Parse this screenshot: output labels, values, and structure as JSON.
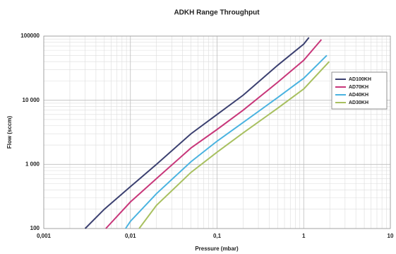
{
  "chart_data": {
    "type": "line",
    "title": "ADKH Range Throughput",
    "x_label": "Pressure (mbar)",
    "y_label": "Flow (sccm)",
    "x_scale": "log",
    "y_scale": "log",
    "grid": true,
    "minor_grid": true,
    "legend": "right",
    "xlim": [
      0.001,
      10
    ],
    "ylim": [
      100,
      100000
    ],
    "xticks": [
      {
        "value": 0.001,
        "label": "0,001"
      },
      {
        "value": 0.01,
        "label": "0,01"
      },
      {
        "value": 0.1,
        "label": "0,1"
      },
      1,
      10
    ],
    "yticks": [
      100,
      {
        "value": 1000,
        "label": "1 000"
      },
      {
        "value": 10000,
        "label": "10 000"
      },
      100000
    ],
    "series": [
      {
        "name": "AD100KH",
        "color": "#3b4070",
        "x": [
          0.003,
          0.005,
          0.01,
          0.02,
          0.05,
          0.1,
          0.2,
          0.5,
          1,
          1.15
        ],
        "values": [
          100,
          200,
          450,
          1000,
          3000,
          6000,
          12000,
          35000,
          75000,
          95000
        ]
      },
      {
        "name": "AD70KH",
        "color": "#c8377a",
        "x": [
          0.0052,
          0.01,
          0.02,
          0.05,
          0.1,
          0.2,
          0.5,
          1,
          1.6
        ],
        "values": [
          100,
          260,
          600,
          1800,
          3500,
          7000,
          19000,
          42000,
          88000
        ]
      },
      {
        "name": "AD40KH",
        "color": "#4ab3e0",
        "x": [
          0.0088,
          0.01,
          0.02,
          0.05,
          0.1,
          0.2,
          0.5,
          1,
          1.85
        ],
        "values": [
          100,
          130,
          350,
          1100,
          2300,
          4500,
          11000,
          22000,
          50000
        ]
      },
      {
        "name": "AD30KH",
        "color": "#a8c060",
        "x": [
          0.0126,
          0.02,
          0.05,
          0.1,
          0.2,
          0.5,
          1,
          1.97
        ],
        "values": [
          100,
          230,
          750,
          1550,
          3100,
          7500,
          15000,
          40000
        ]
      }
    ]
  }
}
